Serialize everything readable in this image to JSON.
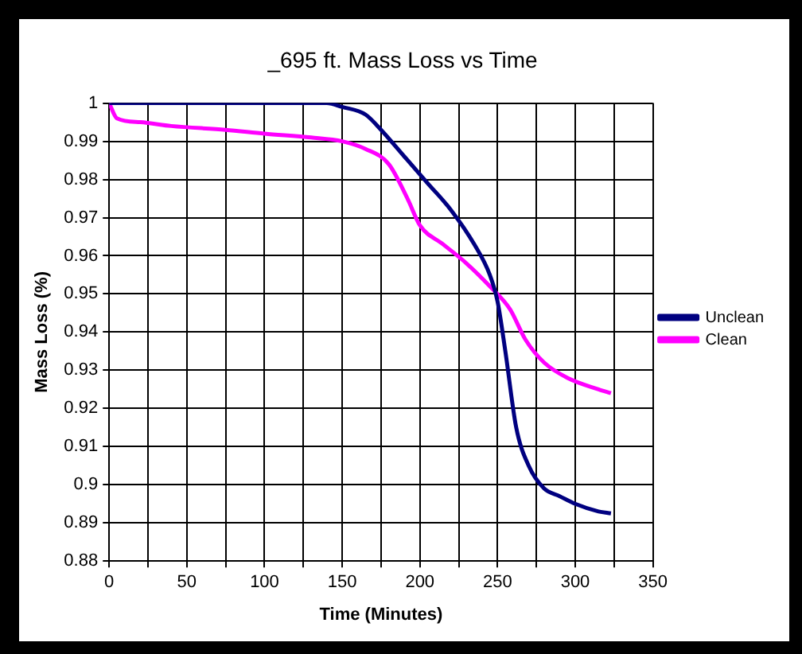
{
  "chart_data": {
    "type": "line",
    "title": "_695 ft. Mass Loss vs Time",
    "xlabel": "Time (Minutes)",
    "ylabel": "Mass Loss (%)",
    "xlim": [
      0,
      350
    ],
    "xticks": [
      0,
      {
        "value": 25,
        "label": null
      },
      50,
      {
        "value": 75,
        "label": null
      },
      100,
      {
        "value": 125,
        "label": null
      },
      150,
      {
        "value": 175,
        "label": null
      },
      200,
      {
        "value": 225,
        "label": null
      },
      250,
      {
        "value": 275,
        "label": null
      },
      300,
      {
        "value": 325,
        "label": null
      },
      350
    ],
    "ylim": [
      0.88,
      1
    ],
    "yticks": [
      0.88,
      0.89,
      0.9,
      0.91,
      0.92,
      0.93,
      0.94,
      0.95,
      0.96,
      0.97,
      0.98,
      0.99,
      1
    ],
    "grid": true,
    "legend": "right",
    "marker": "none",
    "line_style": "solid",
    "series": [
      {
        "name": "Unclean",
        "color": "#000080",
        "x": [
          0,
          50,
          100,
          140,
          150,
          165,
          175,
          190,
          205,
          220,
          235,
          245,
          250,
          255,
          262,
          270,
          280,
          290,
          300,
          315,
          323
        ],
        "values": [
          1,
          1,
          1,
          1,
          0.999,
          0.997,
          0.993,
          0.986,
          0.979,
          0.972,
          0.963,
          0.955,
          0.948,
          0.935,
          0.915,
          0.905,
          0.899,
          0.897,
          0.895,
          0.893,
          0.8925
        ]
      },
      {
        "name": "Clean",
        "color": "#ff00ff",
        "x": [
          0,
          5,
          20,
          40,
          75,
          100,
          130,
          150,
          165,
          180,
          192,
          200,
          215,
          230,
          245,
          258,
          268,
          280,
          295,
          315,
          323
        ],
        "values": [
          1,
          0.996,
          0.995,
          0.994,
          0.993,
          0.992,
          0.991,
          0.99,
          0.988,
          0.984,
          0.975,
          0.968,
          0.963,
          0.958,
          0.952,
          0.946,
          0.938,
          0.932,
          0.928,
          0.925,
          0.924
        ]
      }
    ]
  }
}
